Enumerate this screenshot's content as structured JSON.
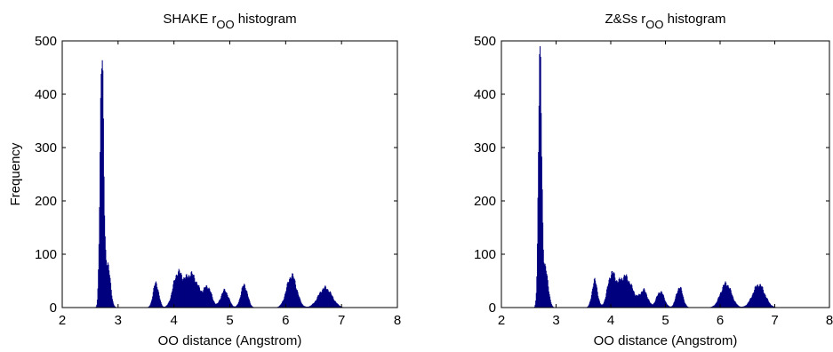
{
  "chart_data": [
    {
      "type": "bar",
      "title": "SHAKE r",
      "title_subscript": "OO",
      "title_suffix": " histogram",
      "xlabel": "OO distance (Angstrom)",
      "ylabel": "Frequency",
      "xlim": [
        2,
        8
      ],
      "ylim": [
        0,
        500
      ],
      "xticks": [
        "2",
        "3",
        "4",
        "5",
        "6",
        "7",
        "8"
      ],
      "yticks": [
        "0",
        "100",
        "200",
        "300",
        "400",
        "500"
      ],
      "bar_color": "#00007f",
      "peaks": [
        {
          "center": 2.7,
          "width": 0.03,
          "height": 485
        },
        {
          "center": 2.8,
          "width": 0.05,
          "height": 85
        },
        {
          "center": 3.67,
          "width": 0.05,
          "height": 46
        },
        {
          "center": 4.05,
          "width": 0.08,
          "height": 55
        },
        {
          "center": 4.3,
          "width": 0.13,
          "height": 62
        },
        {
          "center": 4.6,
          "width": 0.07,
          "height": 35
        },
        {
          "center": 4.9,
          "width": 0.07,
          "height": 32
        },
        {
          "center": 5.25,
          "width": 0.06,
          "height": 42
        },
        {
          "center": 6.1,
          "width": 0.09,
          "height": 60
        },
        {
          "center": 6.7,
          "width": 0.12,
          "height": 37
        }
      ]
    },
    {
      "type": "bar",
      "title": "Z&Ss r",
      "title_subscript": "OO",
      "title_suffix": " histogram",
      "xlabel": "OO distance (Angstrom)",
      "ylabel": "",
      "xlim": [
        2,
        8
      ],
      "ylim": [
        0,
        500
      ],
      "xticks": [
        "2",
        "3",
        "4",
        "5",
        "6",
        "7",
        "8"
      ],
      "yticks": [
        "0",
        "100",
        "200",
        "300",
        "400",
        "500"
      ],
      "bar_color": "#00007f",
      "peaks": [
        {
          "center": 2.7,
          "width": 0.03,
          "height": 468
        },
        {
          "center": 2.8,
          "width": 0.05,
          "height": 70
        },
        {
          "center": 3.7,
          "width": 0.05,
          "height": 50
        },
        {
          "center": 4.0,
          "width": 0.07,
          "height": 52
        },
        {
          "center": 4.25,
          "width": 0.14,
          "height": 58
        },
        {
          "center": 4.6,
          "width": 0.07,
          "height": 30
        },
        {
          "center": 4.9,
          "width": 0.07,
          "height": 30
        },
        {
          "center": 5.25,
          "width": 0.06,
          "height": 38
        },
        {
          "center": 6.1,
          "width": 0.1,
          "height": 45
        },
        {
          "center": 6.7,
          "width": 0.11,
          "height": 43
        }
      ]
    }
  ]
}
